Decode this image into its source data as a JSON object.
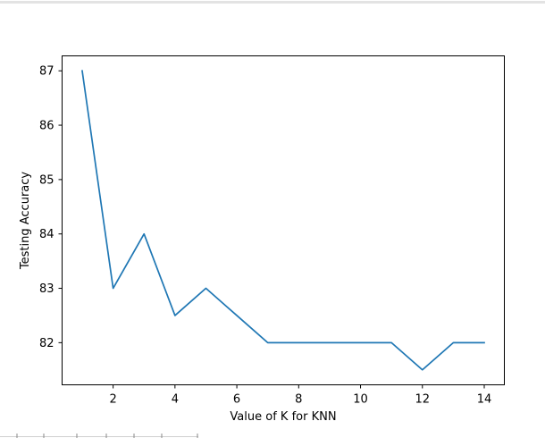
{
  "chart_data": {
    "type": "line",
    "title": "",
    "xlabel": "Value of K for KNN",
    "ylabel": "Testing Accuracy",
    "xlim": [
      0.35,
      14.65
    ],
    "ylim": [
      81.225,
      87.275
    ],
    "xticks": [
      2,
      4,
      6,
      8,
      10,
      12,
      14
    ],
    "yticks": [
      82,
      83,
      84,
      85,
      86,
      87
    ],
    "grid": false,
    "series": [
      {
        "x": [
          1,
          2,
          3,
          4,
          5,
          6,
          7,
          8,
          9,
          10,
          11,
          12,
          13,
          14
        ],
        "values": [
          87,
          83,
          84,
          82.5,
          83,
          82.5,
          82,
          82,
          82,
          82,
          82,
          81.5,
          82,
          82
        ],
        "color": "#1f77b4"
      }
    ]
  }
}
